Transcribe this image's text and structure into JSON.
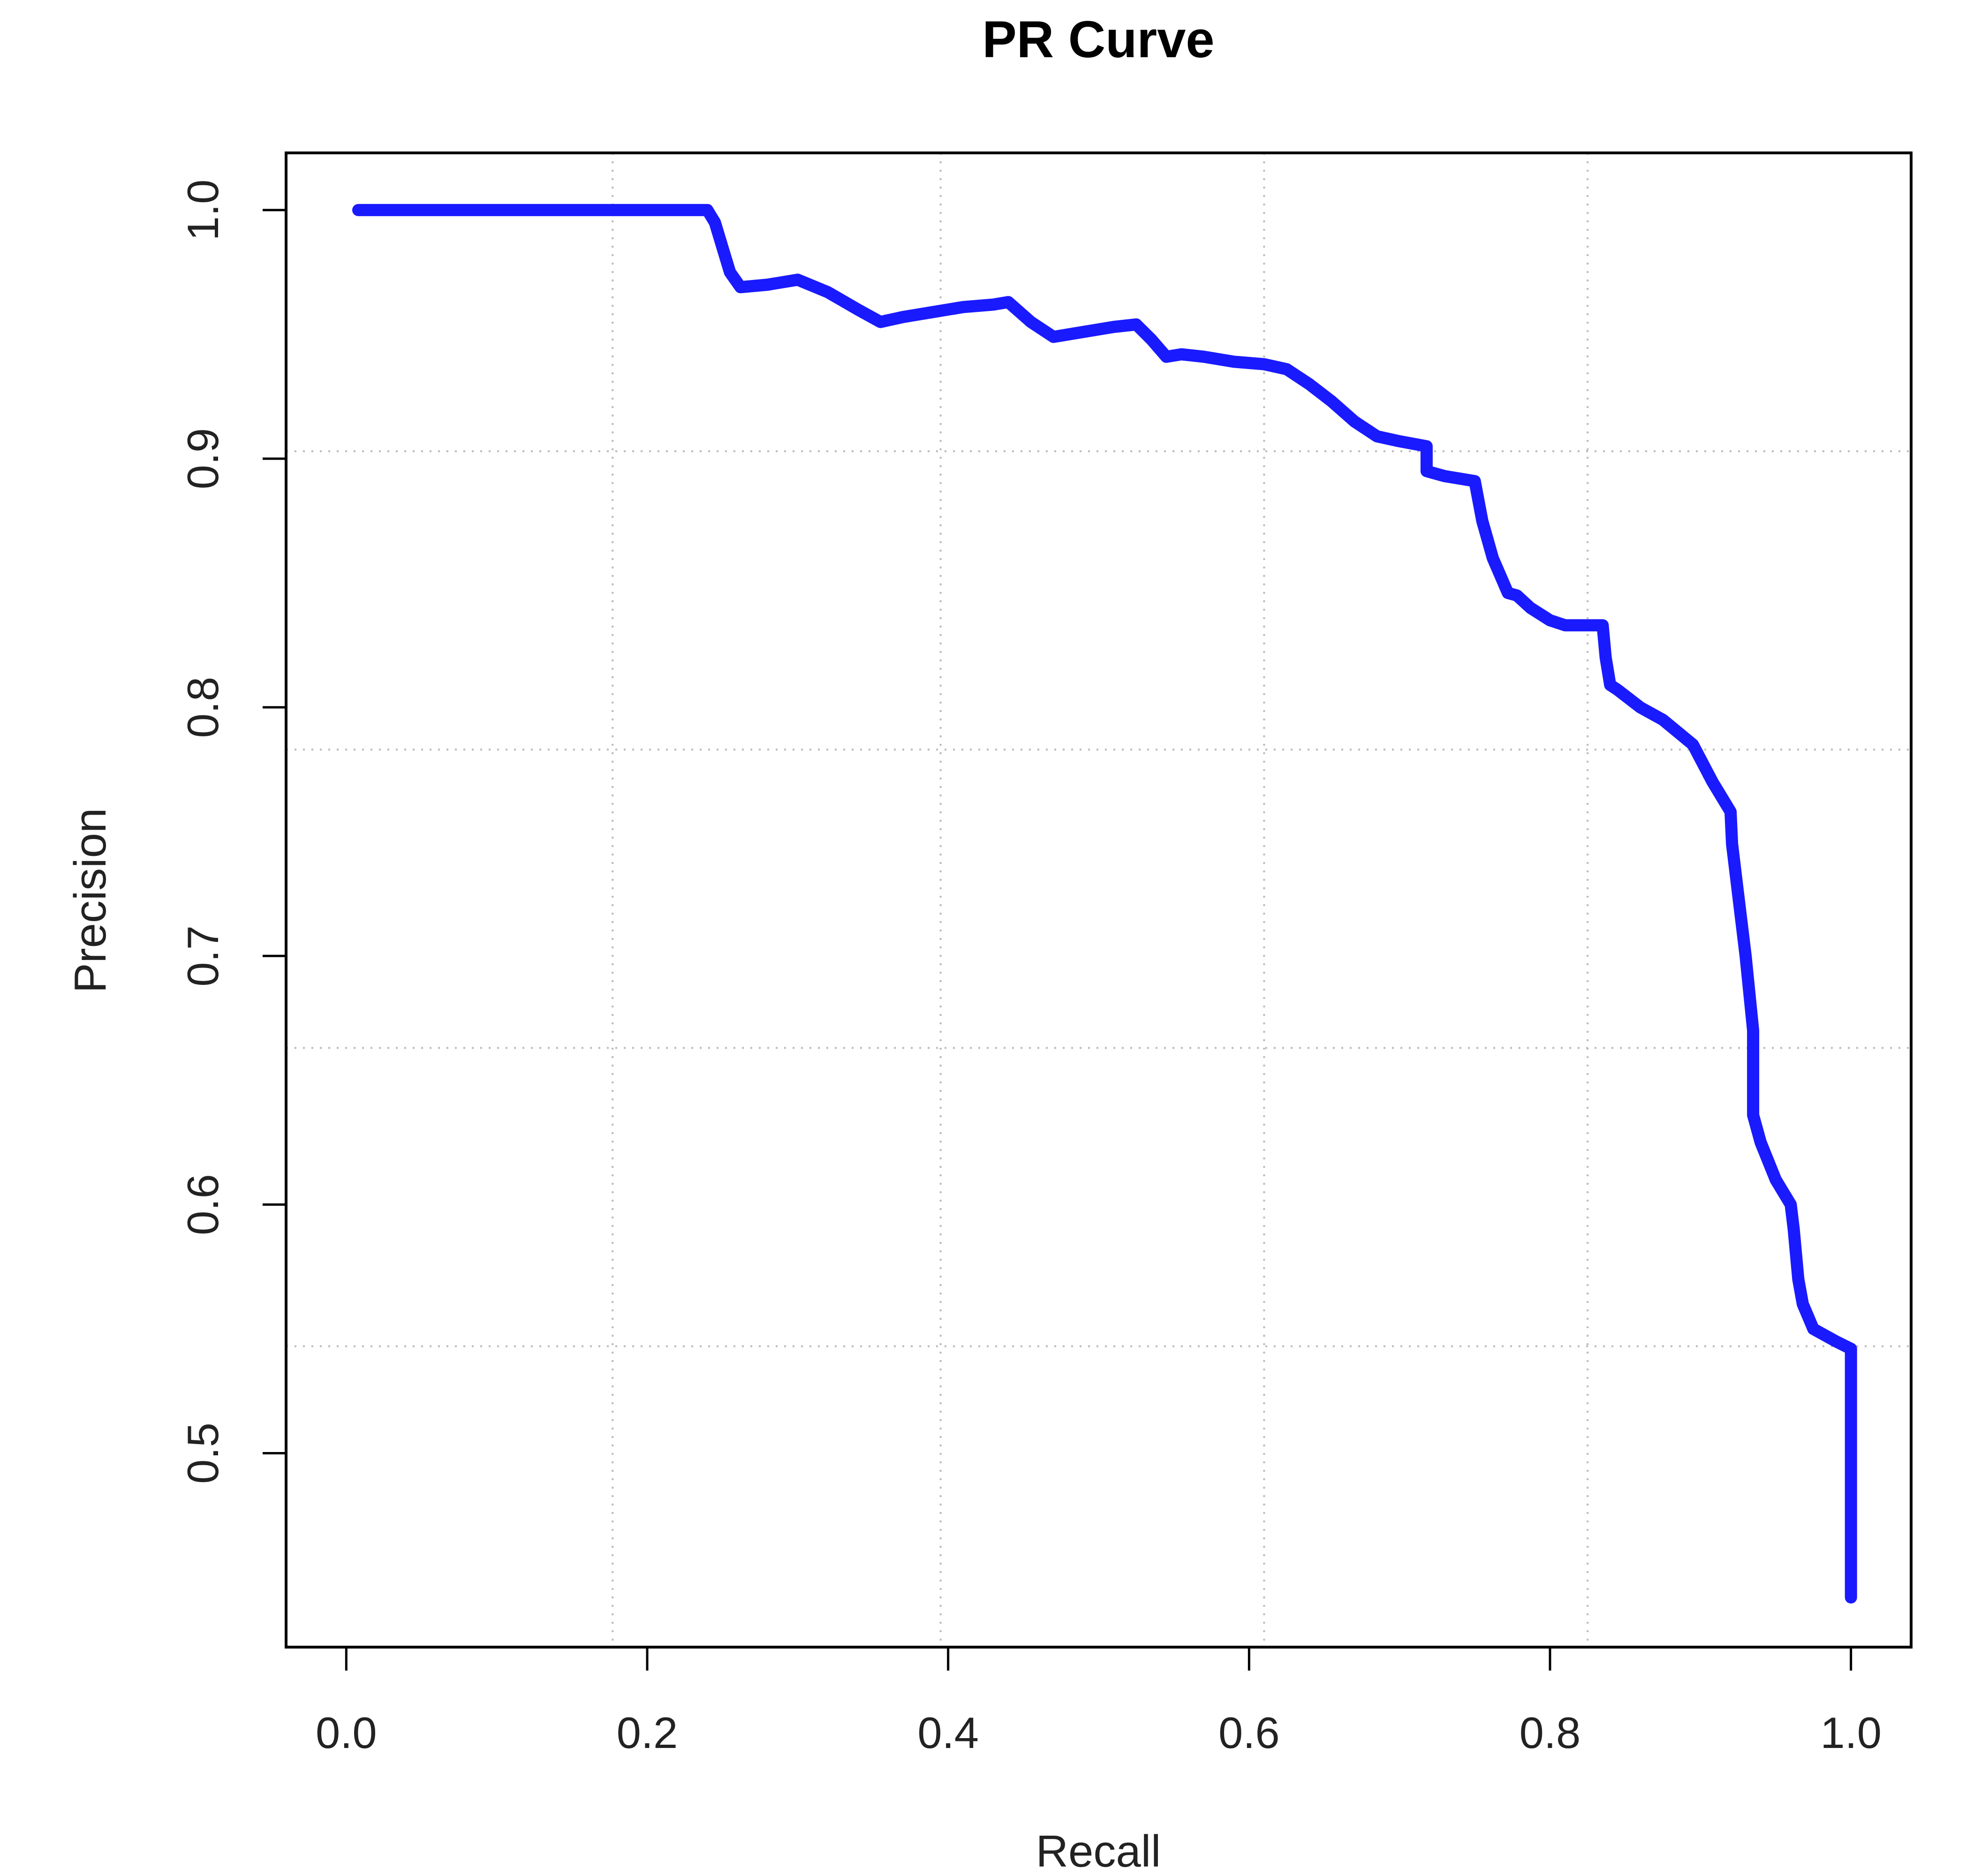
{
  "chart_data": {
    "type": "line",
    "title": "PR Curve",
    "xlabel": "Recall",
    "ylabel": "Precision",
    "xlim": [
      -0.04,
      1.04
    ],
    "ylim": [
      0.422,
      1.023
    ],
    "xticks": [
      0.0,
      0.2,
      0.4,
      0.6,
      0.8,
      1.0
    ],
    "xtick_labels": [
      "0.0",
      "0.2",
      "0.4",
      "0.6",
      "0.8",
      "1.0"
    ],
    "yticks": [
      0.5,
      0.6,
      0.7,
      0.8,
      0.9,
      1.0
    ],
    "ytick_labels": [
      "0.5",
      "0.6",
      "0.7",
      "0.8",
      "0.9",
      "1.0"
    ],
    "gridlines_x": [
      0.177,
      0.395,
      0.61,
      0.825
    ],
    "gridlines_y": [
      0.543,
      0.663,
      0.783,
      0.903
    ],
    "grid": true,
    "line_color": "#1a1aff",
    "series": [
      {
        "name": "PR",
        "x": [
          0.008,
          0.05,
          0.1,
          0.15,
          0.2,
          0.24,
          0.245,
          0.25,
          0.255,
          0.262,
          0.28,
          0.3,
          0.32,
          0.34,
          0.355,
          0.37,
          0.39,
          0.41,
          0.43,
          0.44,
          0.455,
          0.47,
          0.49,
          0.51,
          0.525,
          0.535,
          0.545,
          0.555,
          0.57,
          0.59,
          0.61,
          0.625,
          0.64,
          0.655,
          0.67,
          0.685,
          0.7,
          0.718,
          0.718,
          0.73,
          0.75,
          0.755,
          0.762,
          0.772,
          0.778,
          0.787,
          0.8,
          0.81,
          0.835,
          0.837,
          0.84,
          0.845,
          0.86,
          0.875,
          0.895,
          0.908,
          0.92,
          0.921,
          0.925,
          0.93,
          0.935,
          0.935,
          0.94,
          0.95,
          0.96,
          0.962,
          0.965,
          0.968,
          0.975,
          0.99,
          1.0,
          1.0,
          1.0
        ],
        "y": [
          1.0,
          1.0,
          1.0,
          1.0,
          1.0,
          1.0,
          0.995,
          0.985,
          0.975,
          0.969,
          0.97,
          0.972,
          0.967,
          0.96,
          0.955,
          0.957,
          0.959,
          0.961,
          0.962,
          0.963,
          0.955,
          0.949,
          0.951,
          0.953,
          0.954,
          0.948,
          0.941,
          0.942,
          0.941,
          0.939,
          0.938,
          0.936,
          0.93,
          0.923,
          0.915,
          0.909,
          0.907,
          0.905,
          0.895,
          0.893,
          0.891,
          0.875,
          0.86,
          0.846,
          0.845,
          0.84,
          0.835,
          0.833,
          0.833,
          0.82,
          0.809,
          0.807,
          0.8,
          0.795,
          0.785,
          0.77,
          0.758,
          0.745,
          0.725,
          0.7,
          0.67,
          0.636,
          0.625,
          0.61,
          0.6,
          0.59,
          0.57,
          0.56,
          0.55,
          0.545,
          0.542,
          0.5,
          0.442
        ]
      }
    ]
  }
}
